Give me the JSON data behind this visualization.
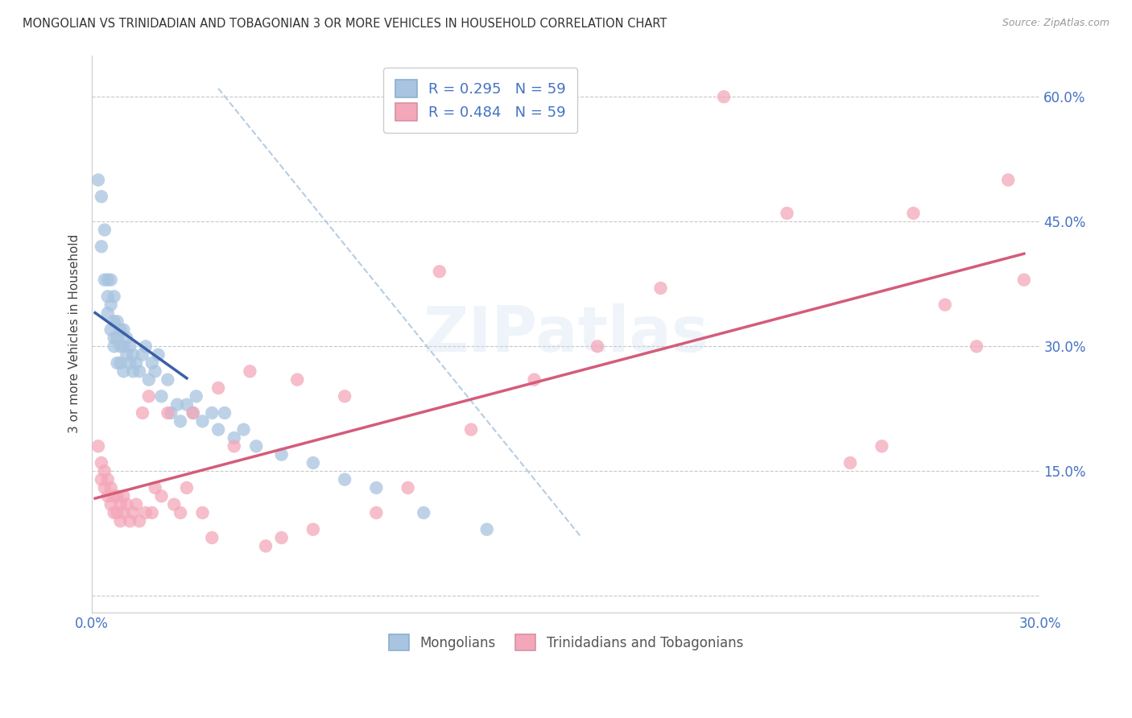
{
  "title": "MONGOLIAN VS TRINIDADIAN AND TOBAGONIAN 3 OR MORE VEHICLES IN HOUSEHOLD CORRELATION CHART",
  "source": "Source: ZipAtlas.com",
  "ylabel": "3 or more Vehicles in Household",
  "xlim": [
    0.0,
    0.3
  ],
  "ylim": [
    -0.02,
    0.65
  ],
  "xticks": [
    0.0,
    0.05,
    0.1,
    0.15,
    0.2,
    0.25,
    0.3
  ],
  "xticklabels": [
    "0.0%",
    "",
    "",
    "",
    "",
    "",
    "30.0%"
  ],
  "yticks": [
    0.0,
    0.15,
    0.3,
    0.45,
    0.6
  ],
  "yticklabels": [
    "",
    "15.0%",
    "30.0%",
    "45.0%",
    "60.0%"
  ],
  "mongolian_R": 0.295,
  "mongolian_N": 59,
  "trinidadian_R": 0.484,
  "trinidadian_N": 59,
  "mongolian_color": "#a8c4e0",
  "trinidadian_color": "#f4a7b9",
  "mongolian_line_color": "#3a5fa8",
  "trinidadian_line_color": "#d45c7a",
  "diag_line_color": "#b0c8e0",
  "legend_labels": [
    "Mongolians",
    "Trinidadians and Tobagonians"
  ],
  "mongolian_x": [
    0.002,
    0.003,
    0.003,
    0.004,
    0.004,
    0.005,
    0.005,
    0.005,
    0.006,
    0.006,
    0.006,
    0.007,
    0.007,
    0.007,
    0.007,
    0.008,
    0.008,
    0.008,
    0.009,
    0.009,
    0.009,
    0.01,
    0.01,
    0.01,
    0.011,
    0.011,
    0.012,
    0.012,
    0.013,
    0.013,
    0.014,
    0.015,
    0.016,
    0.017,
    0.018,
    0.019,
    0.02,
    0.021,
    0.022,
    0.024,
    0.025,
    0.027,
    0.028,
    0.03,
    0.032,
    0.033,
    0.035,
    0.038,
    0.04,
    0.042,
    0.045,
    0.048,
    0.052,
    0.06,
    0.07,
    0.08,
    0.09,
    0.105,
    0.125
  ],
  "mongolian_y": [
    0.5,
    0.48,
    0.42,
    0.44,
    0.38,
    0.36,
    0.34,
    0.38,
    0.32,
    0.35,
    0.38,
    0.31,
    0.33,
    0.36,
    0.3,
    0.28,
    0.31,
    0.33,
    0.28,
    0.3,
    0.32,
    0.27,
    0.3,
    0.32,
    0.29,
    0.31,
    0.28,
    0.3,
    0.27,
    0.29,
    0.28,
    0.27,
    0.29,
    0.3,
    0.26,
    0.28,
    0.27,
    0.29,
    0.24,
    0.26,
    0.22,
    0.23,
    0.21,
    0.23,
    0.22,
    0.24,
    0.21,
    0.22,
    0.2,
    0.22,
    0.19,
    0.2,
    0.18,
    0.17,
    0.16,
    0.14,
    0.13,
    0.1,
    0.08
  ],
  "trinidadian_x": [
    0.002,
    0.003,
    0.003,
    0.004,
    0.004,
    0.005,
    0.005,
    0.006,
    0.006,
    0.007,
    0.007,
    0.008,
    0.008,
    0.009,
    0.009,
    0.01,
    0.01,
    0.011,
    0.012,
    0.013,
    0.014,
    0.015,
    0.016,
    0.017,
    0.018,
    0.019,
    0.02,
    0.022,
    0.024,
    0.026,
    0.028,
    0.03,
    0.032,
    0.035,
    0.038,
    0.04,
    0.045,
    0.05,
    0.055,
    0.06,
    0.065,
    0.07,
    0.08,
    0.09,
    0.1,
    0.11,
    0.12,
    0.14,
    0.16,
    0.18,
    0.2,
    0.22,
    0.24,
    0.25,
    0.26,
    0.27,
    0.28,
    0.29,
    0.295
  ],
  "trinidadian_y": [
    0.18,
    0.16,
    0.14,
    0.15,
    0.13,
    0.12,
    0.14,
    0.11,
    0.13,
    0.1,
    0.12,
    0.1,
    0.12,
    0.09,
    0.11,
    0.1,
    0.12,
    0.11,
    0.09,
    0.1,
    0.11,
    0.09,
    0.22,
    0.1,
    0.24,
    0.1,
    0.13,
    0.12,
    0.22,
    0.11,
    0.1,
    0.13,
    0.22,
    0.1,
    0.07,
    0.25,
    0.18,
    0.27,
    0.06,
    0.07,
    0.26,
    0.08,
    0.24,
    0.1,
    0.13,
    0.39,
    0.2,
    0.26,
    0.3,
    0.37,
    0.6,
    0.46,
    0.16,
    0.18,
    0.46,
    0.35,
    0.3,
    0.5,
    0.38
  ],
  "watermark": "ZIPatlas",
  "background_color": "#ffffff",
  "grid_color": "#c8c8c8"
}
